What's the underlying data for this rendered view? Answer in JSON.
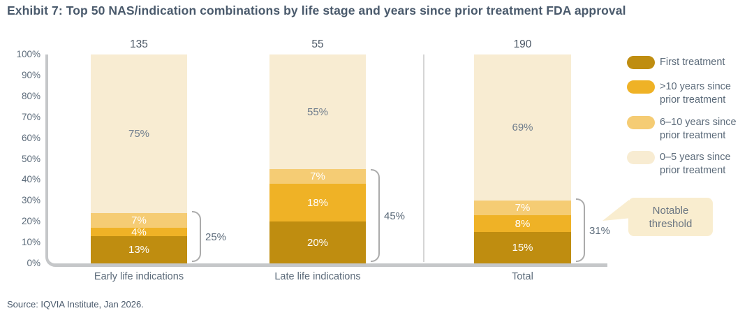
{
  "title": "Exhibit 7: Top 50 NAS/indication combinations by life stage and years since prior treatment FDA approval",
  "source": "Source: IQVIA Institute, Jan 2026.",
  "colors": {
    "first_treatment": "#bf8d10",
    "gt10_years": "#efb226",
    "years_6_10": "#f5cc74",
    "years_0_5": "#f8ecd2",
    "callout_bg": "#f9edcf",
    "axis": "#c5c7c9",
    "bracket": "#ababab",
    "text_slate": "#5c6b7a",
    "seg_label_light": "#ffffff",
    "seg_label_dark": "#6e7c8c"
  },
  "legend": {
    "items": [
      {
        "label": "First treatment",
        "color": "#bf8d10"
      },
      {
        "label": ">10 years since prior treatment",
        "color": "#efb226"
      },
      {
        "label": "6–10 years since prior treatment",
        "color": "#f5cc74"
      },
      {
        "label": "0–5 years since prior treatment",
        "color": "#f8ecd2"
      }
    ]
  },
  "callout": {
    "label": "Notable threshold"
  },
  "chart_data": {
    "type": "bar",
    "stacked": true,
    "title": "Top 50 NAS/indication combinations by life stage and years since prior treatment FDA approval",
    "categories": [
      "Early life indications",
      "Late life indications",
      "Total"
    ],
    "bar_totals": [
      "135",
      "55",
      "190"
    ],
    "series": [
      {
        "name": "First treatment",
        "color": "#bf8d10",
        "label_color": "#ffffff",
        "values": [
          13,
          20,
          15
        ],
        "labels": [
          "13%",
          "20%",
          "15%"
        ]
      },
      {
        "name": ">10 years since prior treatment",
        "color": "#efb226",
        "label_color": "#ffffff",
        "values": [
          4,
          18,
          8
        ],
        "labels": [
          "4%",
          "18%",
          "8%"
        ]
      },
      {
        "name": "6–10 years since prior treatment",
        "color": "#f5cc74",
        "label_color": "#ffffff",
        "values": [
          7,
          7,
          7
        ],
        "labels": [
          "7%",
          "7%",
          "7%"
        ]
      },
      {
        "name": "0–5 years since prior treatment",
        "color": "#f8ecd2",
        "label_color": "#6e7c8c",
        "values": [
          75,
          55,
          69
        ],
        "labels": [
          "75%",
          "55%",
          "69%"
        ]
      }
    ],
    "brackets": [
      {
        "category_index": 0,
        "value": 25,
        "label": "25%"
      },
      {
        "category_index": 1,
        "value": 45,
        "label": "45%"
      },
      {
        "category_index": 2,
        "value": 31,
        "label": "31%"
      }
    ],
    "y_axis": {
      "min": 0,
      "max": 100,
      "tick_step": 10,
      "tick_labels": [
        "0%",
        "10%",
        "20%",
        "30%",
        "40%",
        "50%",
        "60%",
        "70%",
        "80%",
        "90%",
        "100%"
      ]
    },
    "xlabel": "",
    "ylabel": "",
    "legend_position": "right",
    "grid": false
  }
}
